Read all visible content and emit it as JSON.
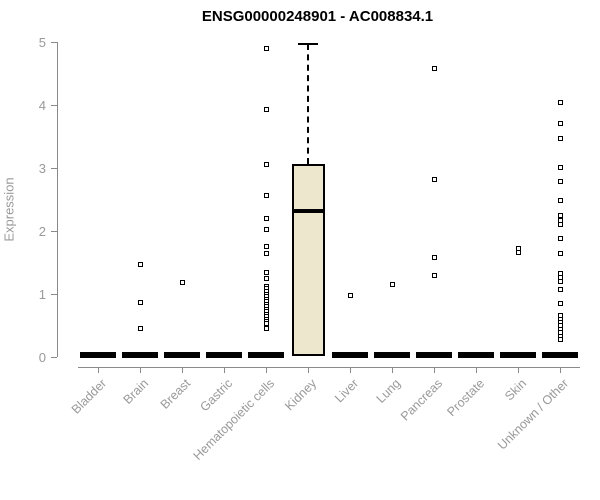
{
  "title": "ENSG00000248901 - AC008834.1",
  "colors": {
    "box_fill": "#ECE7CD",
    "box_border": "#000000",
    "axis_line": "#8a8a8a",
    "tick_text": "#999999",
    "title_text": "#000000",
    "marker": "#000000"
  },
  "chart_data": {
    "type": "boxplot",
    "title": "ENSG00000248901 - AC008834.1",
    "xlabel": "",
    "ylabel": "Expression",
    "ylim": [
      0,
      5
    ],
    "yticks": [
      0,
      1,
      2,
      3,
      4,
      5
    ],
    "grid": false,
    "legend": false,
    "categories": [
      "Bladder",
      "Brain",
      "Breast",
      "Gastric",
      "Hematopoietic cells",
      "Kidney",
      "Liver",
      "Lung",
      "Pancreas",
      "Prostate",
      "Skin",
      "Unknown / Other"
    ],
    "boxes": [
      {
        "category": "Bladder",
        "q1": 0,
        "median": 0,
        "q3": 0,
        "whisker_low": 0,
        "whisker_high": 0,
        "outliers": []
      },
      {
        "category": "Brain",
        "q1": 0,
        "median": 0,
        "q3": 0,
        "whisker_low": 0,
        "whisker_high": 0,
        "outliers": [
          1.47,
          0.86,
          0.45
        ]
      },
      {
        "category": "Breast",
        "q1": 0,
        "median": 0,
        "q3": 0,
        "whisker_low": 0,
        "whisker_high": 0,
        "outliers": [
          1.19
        ]
      },
      {
        "category": "Gastric",
        "q1": 0,
        "median": 0,
        "q3": 0,
        "whisker_low": 0,
        "whisker_high": 0,
        "outliers": []
      },
      {
        "category": "Hematopoietic cells",
        "q1": 0,
        "median": 0,
        "q3": 0,
        "whisker_low": 0,
        "whisker_high": 0,
        "outliers": [
          4.9,
          3.93,
          3.05,
          2.57,
          2.2,
          2.02,
          1.75,
          1.64,
          1.34,
          1.25,
          1.12,
          1.08,
          1.04,
          1.0,
          0.96,
          0.92,
          0.88,
          0.84,
          0.8,
          0.76,
          0.72,
          0.68,
          0.64,
          0.6,
          0.56,
          0.53,
          0.45
        ]
      },
      {
        "category": "Kidney",
        "q1": 0.02,
        "median": 2.32,
        "q3": 3.06,
        "whisker_low": 0.02,
        "whisker_high": 4.97,
        "outliers": []
      },
      {
        "category": "Liver",
        "q1": 0,
        "median": 0,
        "q3": 0,
        "whisker_low": 0,
        "whisker_high": 0,
        "outliers": [
          0.97
        ]
      },
      {
        "category": "Lung",
        "q1": 0,
        "median": 0,
        "q3": 0,
        "whisker_low": 0,
        "whisker_high": 0,
        "outliers": [
          1.15
        ]
      },
      {
        "category": "Pancreas",
        "q1": 0,
        "median": 0,
        "q3": 0,
        "whisker_low": 0,
        "whisker_high": 0,
        "outliers": [
          4.58,
          2.82,
          1.58,
          1.3
        ]
      },
      {
        "category": "Prostate",
        "q1": 0,
        "median": 0,
        "q3": 0,
        "whisker_low": 0,
        "whisker_high": 0,
        "outliers": []
      },
      {
        "category": "Skin",
        "q1": 0,
        "median": 0,
        "q3": 0,
        "whisker_low": 0,
        "whisker_high": 0,
        "outliers": [
          1.72,
          1.66
        ]
      },
      {
        "category": "Unknown / Other",
        "q1": 0,
        "median": 0,
        "q3": 0,
        "whisker_low": 0,
        "whisker_high": 0,
        "outliers": [
          4.04,
          3.71,
          3.47,
          3.01,
          2.79,
          2.48,
          2.25,
          2.17,
          2.1,
          1.88,
          1.65,
          1.33,
          1.26,
          1.2,
          1.07,
          0.85,
          0.66,
          0.6,
          0.55,
          0.5,
          0.44,
          0.39,
          0.33,
          0.27
        ]
      }
    ]
  }
}
